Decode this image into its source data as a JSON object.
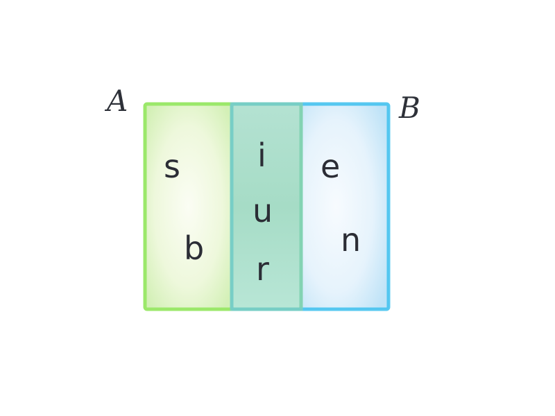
{
  "diagram": {
    "type": "venn-rectangles",
    "colors": {
      "set_a": "#9be86a",
      "set_b": "#45c2ee",
      "overlap": "#8ed3c0"
    },
    "sets": [
      {
        "id": "A",
        "label": "A"
      },
      {
        "id": "B",
        "label": "B"
      }
    ],
    "elements": {
      "only_a": [
        "s",
        "b"
      ],
      "intersection": [
        "i",
        "u",
        "r"
      ],
      "only_b": [
        "e",
        "n"
      ]
    }
  }
}
